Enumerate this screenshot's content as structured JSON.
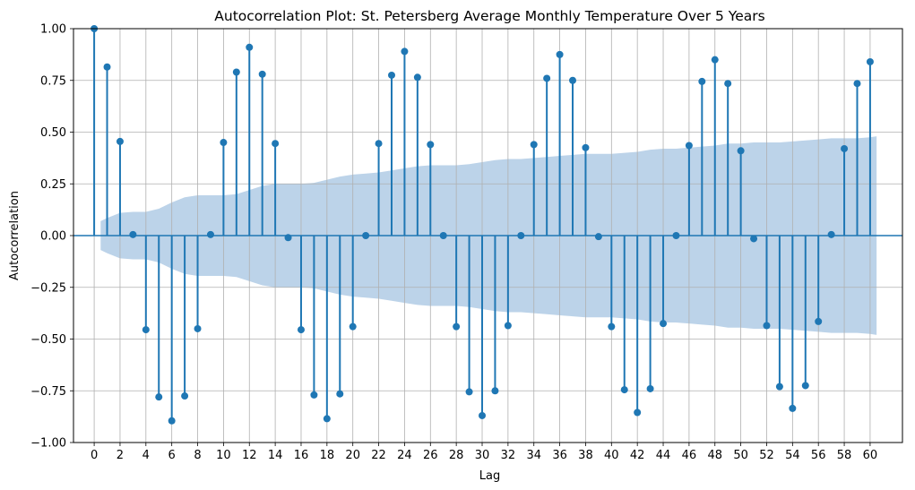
{
  "chart_data": {
    "type": "stem",
    "title": "Autocorrelation Plot: St. Petersberg Average Monthly Temperature Over 5 Years",
    "xlabel": "Lag",
    "ylabel": "Autocorrelation",
    "xlim": [
      -1.6,
      62.5
    ],
    "ylim": [
      -1.0,
      1.0
    ],
    "xticks": [
      0,
      2,
      4,
      6,
      8,
      10,
      12,
      14,
      16,
      18,
      20,
      22,
      24,
      26,
      28,
      30,
      32,
      34,
      36,
      38,
      40,
      42,
      44,
      46,
      48,
      50,
      52,
      54,
      56,
      58,
      60
    ],
    "yticks": [
      -1.0,
      -0.75,
      -0.5,
      -0.25,
      0.0,
      0.25,
      0.5,
      0.75,
      1.0
    ],
    "ytick_labels": [
      "−1.00",
      "−0.75",
      "−0.50",
      "−0.25",
      "0.00",
      "0.25",
      "0.50",
      "0.75",
      "1.00"
    ],
    "grid": true,
    "lags": [
      0,
      1,
      2,
      3,
      4,
      5,
      6,
      7,
      8,
      9,
      10,
      11,
      12,
      13,
      14,
      15,
      16,
      17,
      18,
      19,
      20,
      21,
      22,
      23,
      24,
      25,
      26,
      27,
      28,
      29,
      30,
      31,
      32,
      33,
      34,
      35,
      36,
      37,
      38,
      39,
      40,
      41,
      42,
      43,
      44,
      45,
      46,
      47,
      48,
      49,
      50,
      51,
      52,
      53,
      54,
      55,
      56,
      57,
      58,
      59,
      60
    ],
    "values": [
      1.0,
      0.815,
      0.455,
      0.005,
      -0.455,
      -0.78,
      -0.895,
      -0.775,
      -0.45,
      0.005,
      0.45,
      0.79,
      0.91,
      0.78,
      0.445,
      -0.01,
      -0.455,
      -0.77,
      -0.885,
      -0.765,
      -0.44,
      0.0,
      0.445,
      0.775,
      0.89,
      0.765,
      0.44,
      0.0,
      -0.44,
      -0.755,
      -0.87,
      -0.75,
      -0.435,
      0.0,
      0.44,
      0.76,
      0.875,
      0.75,
      0.425,
      -0.005,
      -0.44,
      -0.745,
      -0.855,
      -0.74,
      -0.425,
      0.0,
      0.435,
      0.745,
      0.85,
      0.735,
      0.41,
      -0.015,
      -0.435,
      -0.73,
      -0.835,
      -0.725,
      -0.415,
      0.005,
      0.42,
      0.735,
      0.84
    ],
    "confidence_band": {
      "lags": [
        0.5,
        1,
        2,
        3,
        4,
        5,
        6,
        7,
        8,
        9,
        10,
        11,
        12,
        13,
        14,
        15,
        16,
        17,
        18,
        19,
        20,
        21,
        22,
        23,
        24,
        25,
        26,
        27,
        28,
        29,
        30,
        31,
        32,
        33,
        34,
        35,
        36,
        37,
        38,
        39,
        40,
        41,
        42,
        43,
        44,
        45,
        46,
        47,
        48,
        49,
        50,
        51,
        52,
        53,
        54,
        55,
        56,
        57,
        58,
        59,
        60,
        60.5
      ],
      "upper": [
        0.07,
        0.085,
        0.11,
        0.115,
        0.115,
        0.13,
        0.16,
        0.185,
        0.195,
        0.195,
        0.195,
        0.2,
        0.22,
        0.24,
        0.25,
        0.25,
        0.25,
        0.255,
        0.27,
        0.285,
        0.295,
        0.3,
        0.305,
        0.315,
        0.325,
        0.335,
        0.34,
        0.34,
        0.34,
        0.345,
        0.355,
        0.365,
        0.37,
        0.37,
        0.375,
        0.38,
        0.385,
        0.39,
        0.395,
        0.395,
        0.395,
        0.4,
        0.405,
        0.415,
        0.42,
        0.42,
        0.425,
        0.43,
        0.435,
        0.445,
        0.445,
        0.45,
        0.45,
        0.45,
        0.455,
        0.46,
        0.465,
        0.47,
        0.47,
        0.47,
        0.475,
        0.48
      ]
    },
    "colors": {
      "stem": "#1f77b4",
      "band": "#bcd3e9",
      "grid": "#b0b0b0",
      "axis": "#000000"
    }
  }
}
